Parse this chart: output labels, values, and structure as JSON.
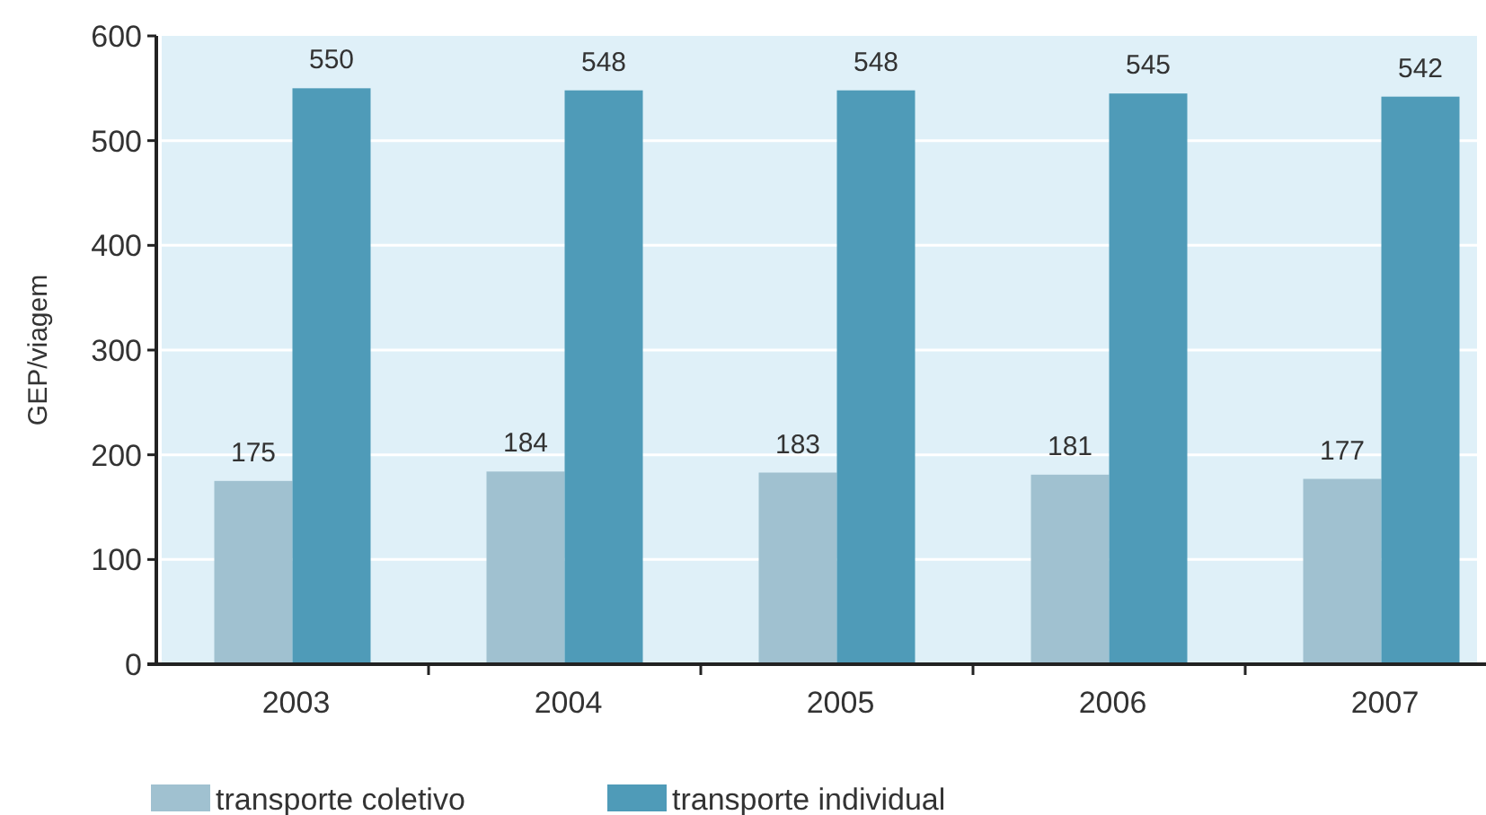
{
  "chart_data": {
    "type": "bar",
    "ylabel": "GEP/viagem",
    "categories": [
      "2003",
      "2004",
      "2005",
      "2006",
      "2007"
    ],
    "series": [
      {
        "name": "transporte coletivo",
        "color": "#a0c1d0",
        "values": [
          175,
          184,
          183,
          181,
          177
        ]
      },
      {
        "name": "transporte individual",
        "color": "#4f9bb8",
        "values": [
          550,
          548,
          548,
          545,
          542
        ]
      }
    ],
    "ylim": [
      0,
      600
    ],
    "yticks": [
      0,
      100,
      200,
      300,
      400,
      500,
      600
    ],
    "grid": "y",
    "legend": "bottom left",
    "data_labels": true
  }
}
